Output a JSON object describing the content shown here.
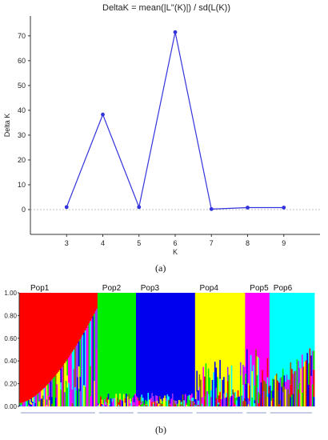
{
  "chart_data": [
    {
      "type": "line",
      "title": "DeltaK = mean(|L''(K)|) / sd(L(K))",
      "xlabel": "K",
      "ylabel": "Delta K",
      "x": [
        3,
        4,
        5,
        6,
        7,
        8,
        9
      ],
      "series": [
        {
          "values": [
            1.0,
            38.3,
            1.0,
            71.5,
            0.2,
            0.8,
            0.8
          ]
        }
      ],
      "xlim": [
        2,
        10
      ],
      "ylim": [
        -10,
        78
      ],
      "yticks": [
        0,
        10,
        20,
        30,
        40,
        50,
        60,
        70
      ],
      "xticks": [
        3,
        4,
        5,
        6,
        7,
        8,
        9
      ],
      "zero_line": true,
      "line_color": "#3333dd",
      "panel_label": "(a)"
    },
    {
      "type": "bar",
      "title": "",
      "xlabel": "",
      "ylabel": "",
      "ylim": [
        0,
        1
      ],
      "yticks": [
        "0.00",
        "0.20",
        "0.40",
        "0.60",
        "0.80",
        "1.00"
      ],
      "populations": [
        {
          "name": "Pop1",
          "dominant": "red",
          "start": 0.0,
          "end": 0.265
        },
        {
          "name": "Pop2",
          "dominant": "green",
          "start": 0.265,
          "end": 0.395
        },
        {
          "name": "Pop3",
          "dominant": "blue",
          "start": 0.395,
          "end": 0.595
        },
        {
          "name": "Pop4",
          "dominant": "yellow",
          "start": 0.595,
          "end": 0.765
        },
        {
          "name": "Pop5",
          "dominant": "magenta",
          "start": 0.765,
          "end": 0.845
        },
        {
          "name": "Pop6",
          "dominant": "cyan",
          "start": 0.845,
          "end": 1.0
        }
      ],
      "colors": {
        "red": "#ff0000",
        "green": "#00ee00",
        "blue": "#0000ee",
        "yellow": "#ffff00",
        "magenta": "#ff00ff",
        "cyan": "#00ffff",
        "purple": "#9933ff",
        "olive": "#8a6a00"
      },
      "panel_label": "(b)"
    }
  ]
}
